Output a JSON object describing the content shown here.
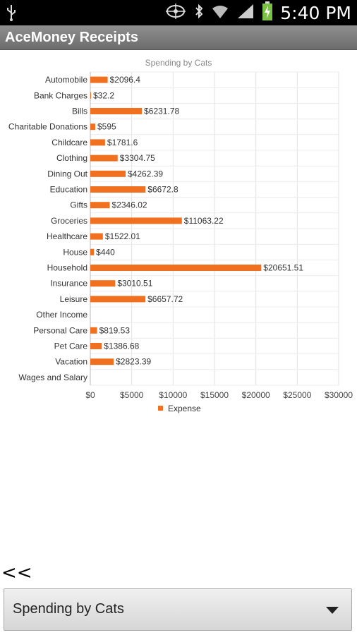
{
  "status_bar": {
    "time": "5:40 PM",
    "icons": [
      "usb-icon",
      "location-icon",
      "bluetooth-icon",
      "wifi-icon",
      "signal-icon",
      "battery-charging-icon"
    ]
  },
  "app": {
    "title": "AceMoney Receipts"
  },
  "chart_data": {
    "type": "bar",
    "orientation": "horizontal",
    "title": "Spending by Cats",
    "categories": [
      "Automobile",
      "Bank Charges",
      "Bills",
      "Charitable Donations",
      "Childcare",
      "Clothing",
      "Dining Out",
      "Education",
      "Gifts",
      "Groceries",
      "Healthcare",
      "House",
      "Household",
      "Insurance",
      "Leisure",
      "Other Income",
      "Personal Care",
      "Pet Care",
      "Vacation",
      "Wages and Salary"
    ],
    "series": [
      {
        "name": "Expense",
        "color": "#f07020",
        "values": [
          2096.4,
          32.2,
          6231.78,
          595,
          1781.6,
          3304.75,
          4262.39,
          6672.8,
          2346.02,
          11063.22,
          1522.01,
          440,
          20651.51,
          3010.51,
          6657.72,
          null,
          819.53,
          1386.68,
          2823.39,
          null
        ],
        "labels": [
          "$2096.4",
          "$32.2",
          "$6231.78",
          "$595",
          "$1781.6",
          "$3304.75",
          "$4262.39",
          "$6672.8",
          "$2346.02",
          "$11063.22",
          "$1522.01",
          "$440",
          "$20651.51",
          "$3010.51",
          "$6657.72",
          "",
          "$819.53",
          "$1386.68",
          "$2823.39",
          ""
        ]
      }
    ],
    "xlim": [
      0,
      30000
    ],
    "xticks": [
      "$0",
      "$5000",
      "$10000",
      "$15000",
      "$20000",
      "$25000",
      "$30000"
    ],
    "grid": true,
    "legend": "bottom-center"
  },
  "navigation": {
    "back_label": "<<"
  },
  "spinner": {
    "selected": "Spending by Cats"
  }
}
